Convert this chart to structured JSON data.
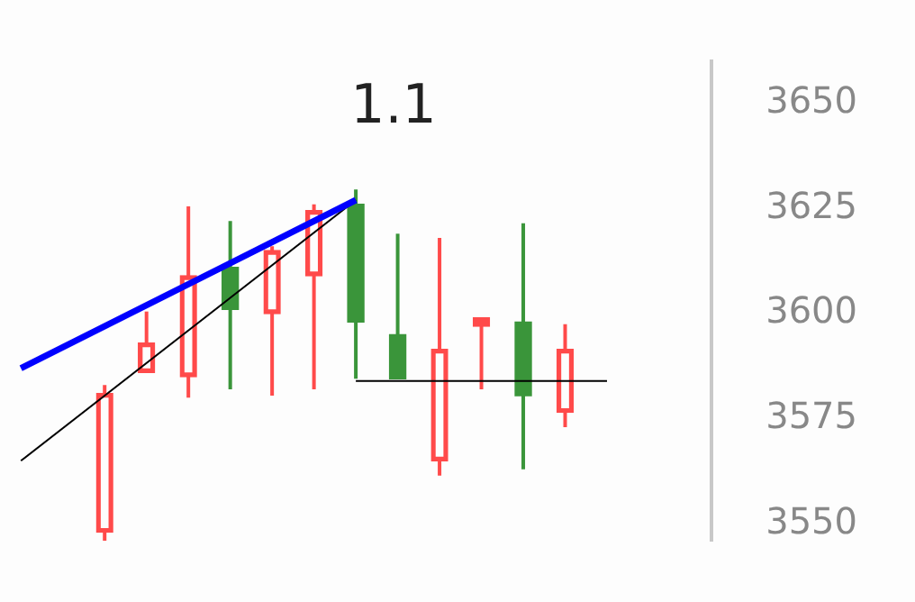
{
  "chart_data": {
    "type": "candlestick",
    "categories": [
      null,
      null,
      null,
      null,
      null,
      null,
      null,
      null,
      null,
      null,
      null,
      null,
      null,
      null,
      null,
      null,
      null
    ],
    "ohlc": [
      null,
      null,
      [
        3548,
        3583,
        3546,
        3581
      ],
      [
        3586,
        3600.5,
        3586,
        3593
      ],
      [
        3585,
        3625.5,
        3580,
        3609
      ],
      [
        3611,
        3622,
        3582,
        3601
      ],
      [
        3600,
        3616,
        3580.5,
        3615
      ],
      [
        3609,
        3626,
        3582,
        3624.5
      ],
      [
        3626,
        3629.5,
        3584.5,
        3598
      ],
      [
        3595,
        3619,
        3584.5,
        3584.5
      ],
      [
        3565,
        3618,
        3561.5,
        3591.5
      ],
      [
        3597,
        3599,
        3582,
        3599
      ],
      [
        3598,
        3621.5,
        3563,
        3580.5
      ],
      [
        3576.5,
        3597.5,
        3573,
        3591.5
      ],
      null,
      null,
      null
    ],
    "colors": [
      null,
      null,
      "#ff4a4a",
      "#ff4a4a",
      "#ff4a4a",
      "#3a953a",
      "#ff4a4a",
      "#ff4a4a",
      "#3a953a",
      "#3a953a",
      "#ff4a4a",
      "#ff4a4a",
      "#3a953a",
      "#ff4a4a",
      null,
      null,
      null
    ],
    "series": [
      {
        "type": "line",
        "color": "#0000ff",
        "values": [
          3587,
          null,
          null,
          null,
          null,
          null,
          null,
          null,
          3627,
          null,
          null,
          null,
          null,
          null,
          null,
          null,
          null
        ]
      },
      {
        "type": "line",
        "color": "#000000",
        "values": [
          3565,
          null,
          null,
          null,
          null,
          null,
          null,
          null,
          3627,
          null,
          null,
          null,
          null,
          null,
          null,
          null,
          null
        ]
      },
      {
        "type": "line",
        "color": "#000000",
        "values": [
          null,
          null,
          null,
          null,
          null,
          null,
          null,
          null,
          3584,
          3584,
          3584,
          3584,
          3584,
          3584,
          3584,
          null,
          null
        ]
      }
    ],
    "ylim": [
      3546,
      3660
    ],
    "yticks": [
      3550,
      3575,
      3600,
      3625,
      3650
    ],
    "tick_labels": "y",
    "grid": false,
    "legend": false,
    "annotations": [
      "1.1"
    ]
  }
}
